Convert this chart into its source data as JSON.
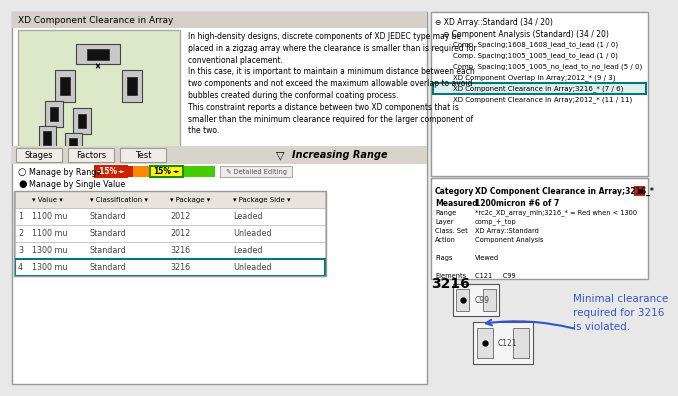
{
  "title_left": "XD Component Clearance in Array",
  "desc_text": "In high-density designs, discrete components of XD JEDEC type may be\nplaced in a zigzag array where the clearance is smaller than is required for\nconventional placement.\nIn this case, it is important to maintain a minimum distance between each\ntwo components and not exceed the maximum allowable overlap to avoid\nbubbles created during the conformal coating process.\nThis constraint reports a distance between two XD components that is\nsmaller than the minimum clearance required for the larger component of\nthe two.",
  "tab_labels": [
    "Stages",
    "Factors",
    "Test"
  ],
  "range_label": "Increasing Range",
  "range_left": "-15%",
  "range_right": "15%",
  "radio1": "Manage by Range",
  "radio2": "Manage by Single Value",
  "table_rows": [
    [
      "1",
      "1100 mu",
      "Standard",
      "2012",
      "Leaded"
    ],
    [
      "2",
      "1100 mu",
      "Standard",
      "2012",
      "Unleaded"
    ],
    [
      "3",
      "1300 mu",
      "Standard",
      "3216",
      "Leaded"
    ],
    [
      "4",
      "1300 mu",
      "Standard",
      "3216",
      "Unleaded"
    ]
  ],
  "tree_title": "XD Array::Standard (34 / 20)",
  "tree_sub": "Component Analysis (Standard) (34 / 20)",
  "tree_items": [
    [
      "Comp. Spacing;1608_1608_lead_to_lead (1 / 0)",
      false
    ],
    [
      "Comp. Spacing;1005_1005_lead_to_lead (1 / 0)",
      false
    ],
    [
      "Comp. Spacing;1005_1005_no_lead_to_no_lead (5 / 0)",
      false
    ],
    [
      "XD Component Overlap in Array;2012_* (9 / 3)",
      false
    ],
    [
      "XD Component Clearance in Array;3216_* (7 / 6)",
      true
    ],
    [
      "XD Component Clearance in Array;2012_* (11 / 11)",
      false
    ]
  ],
  "cat_label": "Category",
  "cat_value": "XD Component Clearance in Array;3216_*",
  "meas_label": "Measured",
  "meas_value": "1200micron #6 of 7",
  "detail_rows": [
    [
      "Range",
      "*rc2c_XD_array_min;3216_* = Red when < 1300"
    ],
    [
      "Layer",
      "comp_+_top"
    ],
    [
      "Class. Set",
      "XD Array::Standard"
    ],
    [
      "Action",
      "Component Analysis"
    ],
    [
      "",
      ""
    ],
    [
      "Flags",
      "Viewed"
    ],
    [
      "",
      ""
    ],
    [
      "Elements",
      "C121     C99"
    ]
  ],
  "comp_label": "3216",
  "annotation": "Minimal clearance\nrequired for 3216\nis violated.",
  "bg_color": "#e8e8e8",
  "panel_bg": "#ffffff",
  "green_panel": "#dce8c8",
  "teal_border": "#007878",
  "red_color": "#cc2200",
  "yellow_color": "#ffff00",
  "arrow_color": "#3355cc"
}
